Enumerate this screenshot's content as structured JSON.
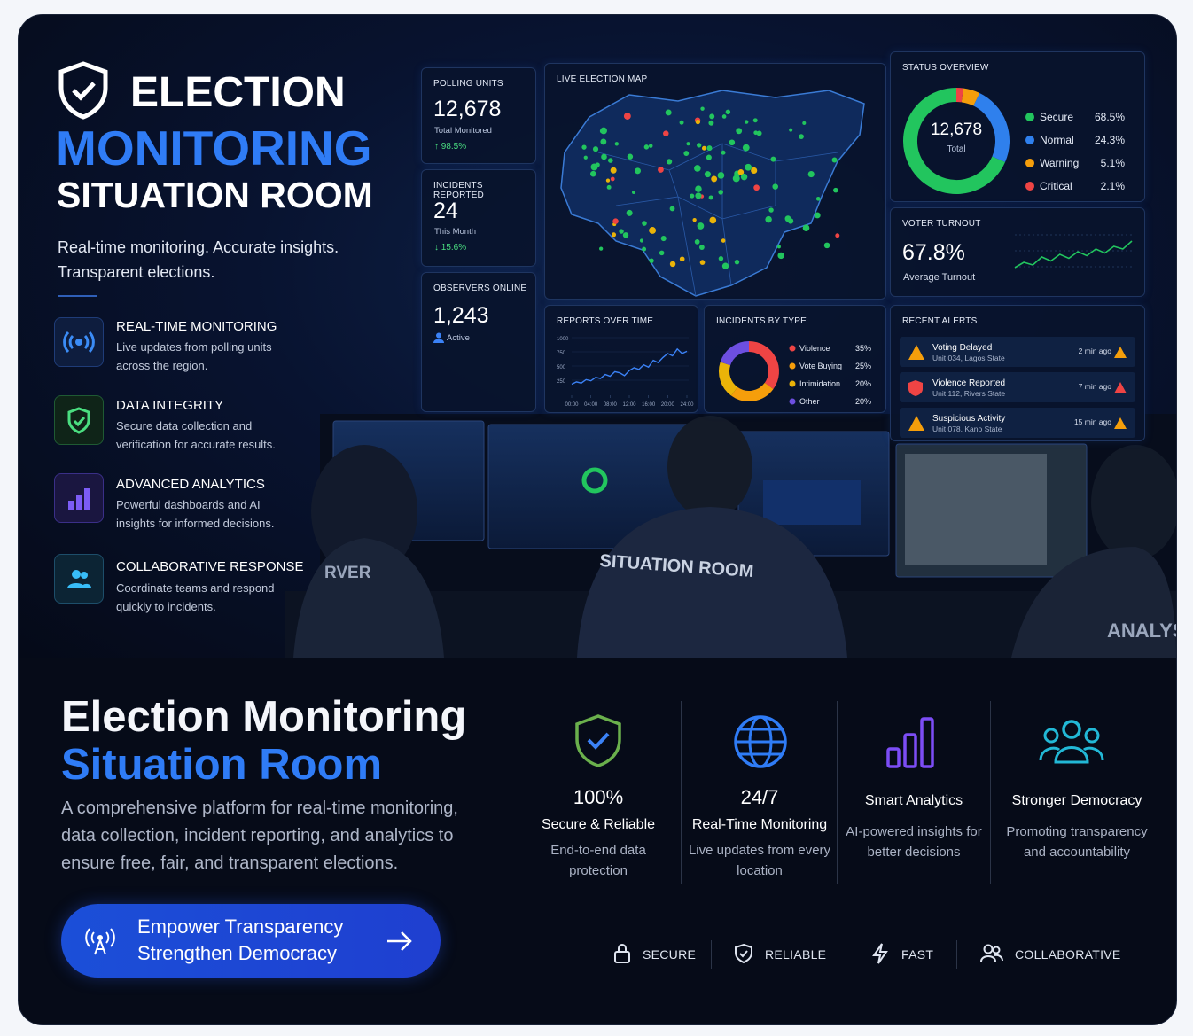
{
  "hero": {
    "title": [
      "ELECTION",
      "MONITORING",
      "SITUATION ROOM"
    ],
    "tagline": "Real-time monitoring. Accurate insights. Transparent elections."
  },
  "features": [
    {
      "title": "REAL-TIME MONITORING",
      "description": "Live updates from polling units across the region."
    },
    {
      "title": "DATA INTEGRITY",
      "description": "Secure data collection and verification for accurate results."
    },
    {
      "title": "ADVANCED ANALYTICS",
      "description": "Powerful dashboards and AI insights for informed decisions."
    },
    {
      "title": "COLLABORATIVE RESPONSE",
      "description": "Coordinate teams and respond quickly to incidents."
    }
  ],
  "dashboard": {
    "polling_units": {
      "label": "POLLING UNITS",
      "value": "12,678",
      "caption": "Total Monitored",
      "change": "↑ 98.5%"
    },
    "incidents_reported": {
      "label": "INCIDENTS REPORTED",
      "value": "24",
      "caption": "This Month",
      "change": "↓ 15.6%"
    },
    "observers_online": {
      "label": "OBSERVERS ONLINE",
      "value": "1,243",
      "caption": "Active"
    },
    "map": {
      "title": "LIVE ELECTION MAP"
    },
    "status_overview": {
      "title": "STATUS OVERVIEW",
      "total": "12,678",
      "total_label": "Total",
      "segments": [
        {
          "name": "Secure",
          "color": "#22c55e",
          "value": 68.5,
          "value_label": "68.5%"
        },
        {
          "name": "Normal",
          "color": "#2f80ed",
          "value": 24.3,
          "value_label": "24.3%"
        },
        {
          "name": "Warning",
          "color": "#f59e0b",
          "value": 5.1,
          "value_label": "5.1%"
        },
        {
          "name": "Critical",
          "color": "#ef4444",
          "value": 2.1,
          "value_label": "2.1%"
        }
      ]
    },
    "voter_turnout": {
      "title": "VOTER TURNOUT",
      "value": "67.8%",
      "caption": "Average Turnout",
      "color": "#22c55e",
      "ylim": [
        40,
        80
      ],
      "trend": [
        50,
        54,
        52,
        58,
        55,
        60,
        57,
        62,
        59,
        64,
        61,
        66,
        64,
        70
      ]
    },
    "reports_over_time": {
      "title": "REPORTS OVER TIME",
      "color": "#3b82f6",
      "xlim": [
        0,
        24
      ],
      "ylim": [
        0,
        1000
      ],
      "yticks": [
        250,
        500,
        750,
        1000
      ],
      "xticks": [
        {
          "value": 0,
          "label": "00:00"
        },
        {
          "value": 4,
          "label": "04:00"
        },
        {
          "value": 8,
          "label": "08:00"
        },
        {
          "value": 12,
          "label": "12:00"
        },
        {
          "value": 16,
          "label": "16:00"
        },
        {
          "value": 20,
          "label": "20:00"
        },
        {
          "value": 24,
          "label": "24:00"
        }
      ],
      "x": [
        0,
        1,
        2,
        3,
        4,
        5,
        6,
        7,
        8,
        9,
        10,
        11,
        12,
        13,
        14,
        15,
        16,
        17,
        18,
        19,
        20,
        21,
        22,
        23,
        24
      ],
      "values": [
        180,
        220,
        200,
        260,
        240,
        300,
        280,
        350,
        320,
        400,
        380,
        330,
        420,
        470,
        440,
        520,
        480,
        600,
        560,
        650,
        720,
        680,
        800,
        720,
        760
      ]
    },
    "incidents_by_type": {
      "title": "INCIDENTS BY TYPE",
      "segments": [
        {
          "name": "Violence",
          "color": "#ef4444",
          "value": 35,
          "value_label": "35%"
        },
        {
          "name": "Vote Buying",
          "color": "#f59e0b",
          "value": 25,
          "value_label": "25%"
        },
        {
          "name": "Intimidation",
          "color": "#eab308",
          "value": 20,
          "value_label": "20%"
        },
        {
          "name": "Other",
          "color": "#6d4fe0",
          "value": 20,
          "value_label": "20%"
        }
      ]
    },
    "recent_alerts": {
      "title": "RECENT ALERTS",
      "items": [
        {
          "title": "Voting Delayed",
          "location": "Unit 034, Lagos State",
          "time": "2 min ago"
        },
        {
          "title": "Violence Reported",
          "location": "Unit 112, Rivers State",
          "time": "7 min ago"
        },
        {
          "title": "Suspicious Activity",
          "location": "Unit 078, Kano State",
          "time": "15 min ago"
        }
      ]
    }
  },
  "photo_text": [
    "SITUATION ROOM",
    "RVER",
    "ANALYS"
  ],
  "intro": {
    "title": "Election Monitoring",
    "subtitle": "Situation Room",
    "description": "A comprehensive platform for real-time monitoring, data collection, incident reporting, and analytics to ensure free, fair, and transparent elections."
  },
  "cta": {
    "line1": "Empower Transparency",
    "line2": "Strengthen Democracy"
  },
  "highlights": [
    {
      "stat": "100%",
      "title": "Secure & Reliable",
      "description": "End-to-end data protection"
    },
    {
      "stat": "24/7",
      "title": "Real-Time Monitoring",
      "description": "Live updates from every location"
    },
    {
      "title": "Smart Analytics",
      "description": "AI-powered insights for better decisions"
    },
    {
      "title": "Stronger Democracy",
      "description": "Promoting transparency and accountability"
    }
  ],
  "badges": [
    "SECURE",
    "RELIABLE",
    "FAST",
    "COLLABORATIVE"
  ]
}
